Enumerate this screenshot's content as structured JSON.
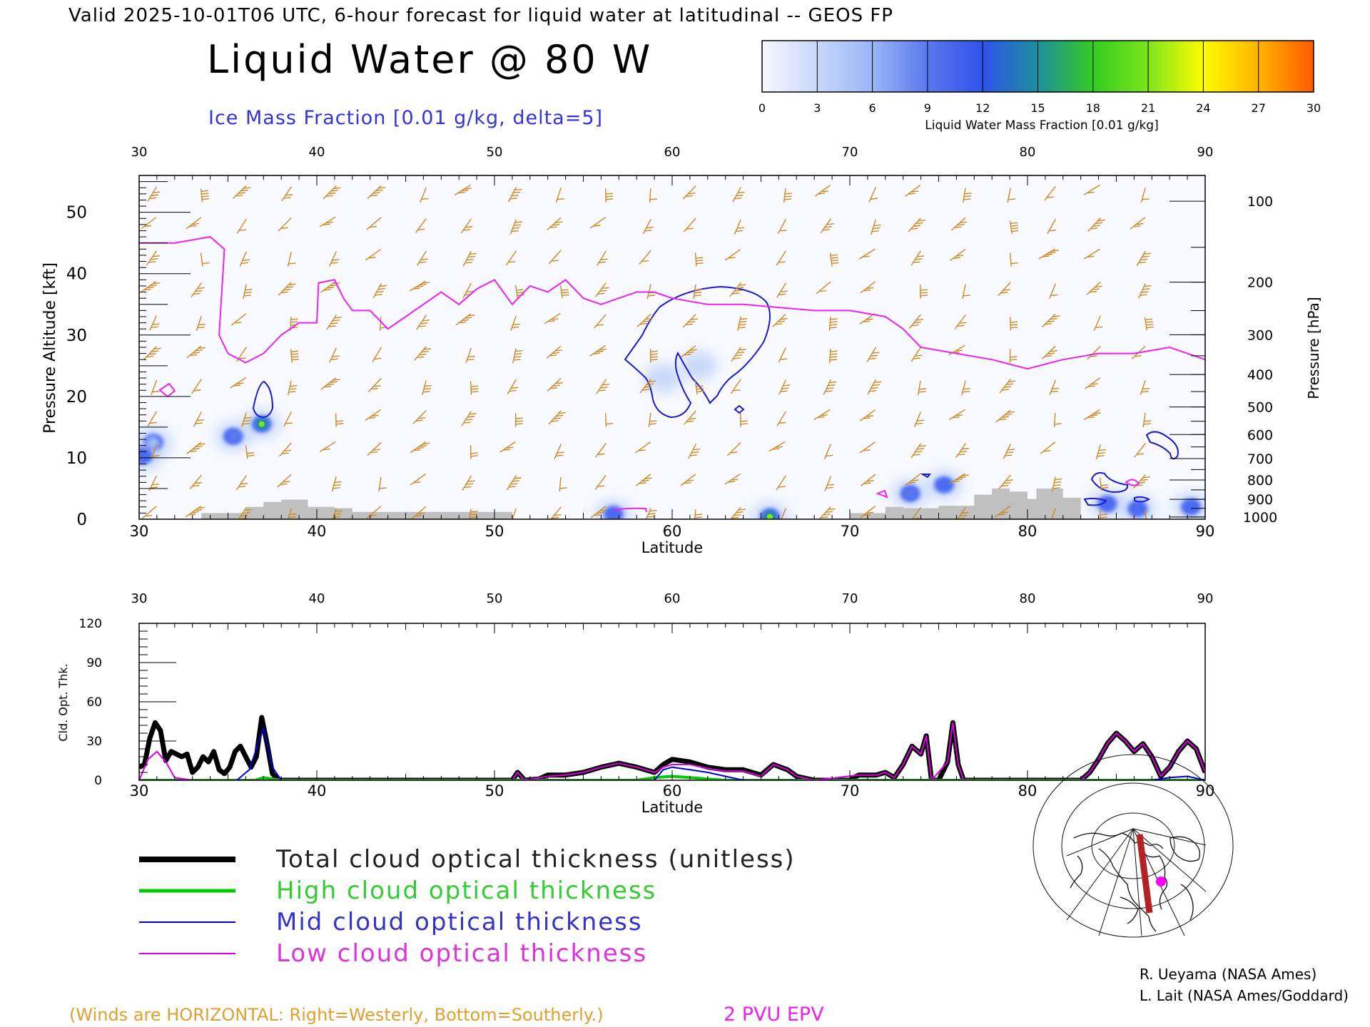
{
  "header": {
    "valid_line": "Valid 2025-10-01T06 UTC, 6-hour forecast for liquid water at latitudinal -- GEOS FP",
    "title": "Liquid Water @ 80 W",
    "ice_label": "Ice Mass Fraction [0.01 g/kg, delta=5]"
  },
  "colorbar": {
    "ticks": [
      "0",
      "3",
      "6",
      "9",
      "12",
      "15",
      "18",
      "21",
      "24",
      "27",
      "30"
    ],
    "colors": [
      "#f6f8ff",
      "#c8d8fb",
      "#99b5f6",
      "#5a78ef",
      "#2f53ea",
      "#1d8f9d",
      "#33cc22",
      "#7ee51c",
      "#fffc00",
      "#ffb300",
      "#ff5a00"
    ],
    "label": "Liquid Water Mass Fraction [0.01 g/kg]"
  },
  "chart_data": [
    {
      "type": "heatmap",
      "name_printed": "Liquid Water @ 80 W",
      "x_ticks": [
        "30",
        "40",
        "50",
        "60",
        "70",
        "80",
        "90"
      ],
      "xlim": [
        30,
        90
      ],
      "xlabel": "Latitude",
      "ylabel_left": "Pressure Altitude [kft]",
      "y_ticks_left": [
        "0",
        "10",
        "20",
        "30",
        "40",
        "50"
      ],
      "ylim_left": [
        0,
        56
      ],
      "ylabel_right": "Pressure [hPa]",
      "y_ticks_right": [
        "100",
        "200",
        "300",
        "400",
        "500",
        "600",
        "700",
        "800",
        "900",
        "1000"
      ],
      "tropopause_kft": [
        [
          30,
          45
        ],
        [
          32,
          45
        ],
        [
          34,
          46
        ],
        [
          34.8,
          44
        ],
        [
          34.5,
          30
        ],
        [
          35,
          27
        ],
        [
          36,
          25.5
        ],
        [
          37,
          27
        ],
        [
          38,
          30
        ],
        [
          39,
          32
        ],
        [
          40,
          32
        ],
        [
          40.1,
          38.5
        ],
        [
          41,
          39
        ],
        [
          41.5,
          36
        ],
        [
          42,
          34
        ],
        [
          43,
          34
        ],
        [
          44,
          31
        ],
        [
          45,
          33
        ],
        [
          46,
          35
        ],
        [
          47,
          37
        ],
        [
          48,
          35
        ],
        [
          49,
          37.5
        ],
        [
          50,
          39
        ],
        [
          51,
          35
        ],
        [
          52,
          38
        ],
        [
          53,
          37
        ],
        [
          54,
          39
        ],
        [
          55,
          36
        ],
        [
          56,
          35
        ],
        [
          57,
          36
        ],
        [
          58,
          37
        ],
        [
          59,
          37
        ],
        [
          60,
          36
        ],
        [
          62,
          35
        ],
        [
          64,
          35
        ],
        [
          66,
          34.5
        ],
        [
          68,
          34
        ],
        [
          70,
          34
        ],
        [
          72,
          33
        ],
        [
          73,
          31
        ],
        [
          74,
          28
        ],
        [
          76,
          27
        ],
        [
          78,
          26
        ],
        [
          80,
          24.5
        ],
        [
          82,
          26
        ],
        [
          84,
          27
        ],
        [
          86,
          27
        ],
        [
          88,
          28
        ],
        [
          90,
          26
        ]
      ],
      "cloud_blobs": [
        {
          "lat": 30.8,
          "kft": 12.5,
          "level": 10
        },
        {
          "lat": 30.2,
          "kft": 10.3,
          "level": 6
        },
        {
          "lat": 35.3,
          "kft": 13.5,
          "level": 12
        },
        {
          "lat": 36.9,
          "kft": 15.5,
          "level": 18
        },
        {
          "lat": 73.4,
          "kft": 4.2,
          "level": 12
        },
        {
          "lat": 75.3,
          "kft": 5.6,
          "level": 4
        },
        {
          "lat": 84.5,
          "kft": 2.5,
          "level": 5
        },
        {
          "lat": 86.2,
          "kft": 1.7,
          "level": 5
        },
        {
          "lat": 89.2,
          "kft": 2.0,
          "level": 6
        },
        {
          "lat": 65.5,
          "kft": 0.4,
          "level": 18
        },
        {
          "lat": 56.7,
          "kft": 0.8,
          "level": 5
        },
        {
          "lat": 59.5,
          "kft": 23.0,
          "level": 2
        },
        {
          "lat": 61.5,
          "kft": 25.0,
          "level": 2
        }
      ],
      "terrain_kft": [
        [
          30,
          0
        ],
        [
          33.5,
          0
        ],
        [
          33.5,
          1
        ],
        [
          36,
          1
        ],
        [
          36,
          2
        ],
        [
          37,
          2
        ],
        [
          37,
          2.8
        ],
        [
          38,
          2.8
        ],
        [
          38,
          3.2
        ],
        [
          39.5,
          3.2
        ],
        [
          39.5,
          2
        ],
        [
          41,
          2
        ],
        [
          41,
          1.8
        ],
        [
          42,
          1.8
        ],
        [
          42,
          1.2
        ],
        [
          51,
          1.2
        ],
        [
          51,
          0
        ],
        [
          70,
          0
        ],
        [
          70,
          1
        ],
        [
          72,
          1
        ],
        [
          72,
          2
        ],
        [
          73,
          2
        ],
        [
          73,
          1.8
        ],
        [
          75,
          1.8
        ],
        [
          75,
          2.2
        ],
        [
          77,
          2.2
        ],
        [
          77,
          4
        ],
        [
          78,
          4
        ],
        [
          78,
          5
        ],
        [
          79,
          5
        ],
        [
          79,
          4.5
        ],
        [
          80,
          4.5
        ],
        [
          80,
          3.3
        ],
        [
          80.5,
          3.3
        ],
        [
          80.5,
          5
        ],
        [
          82,
          5
        ],
        [
          82,
          3.5
        ],
        [
          83,
          3.5
        ],
        [
          83,
          0
        ],
        [
          90,
          0
        ]
      ]
    },
    {
      "type": "line",
      "xlim": [
        30,
        90
      ],
      "ylim": [
        0,
        120
      ],
      "x_ticks": [
        "30",
        "40",
        "50",
        "60",
        "70",
        "80",
        "90"
      ],
      "y_ticks": [
        "0",
        "30",
        "60",
        "90",
        "120"
      ],
      "xlabel": "Latitude",
      "ylabel": "Cld. Opt. Thk.",
      "series": [
        {
          "name": "Total cloud optical thickness (unitless)",
          "color": "#000000",
          "width": 7,
          "points": [
            [
              30,
              10
            ],
            [
              30.3,
              12
            ],
            [
              30.6,
              32
            ],
            [
              30.9,
              44
            ],
            [
              31.2,
              38
            ],
            [
              31.5,
              15
            ],
            [
              31.8,
              22
            ],
            [
              32.1,
              20
            ],
            [
              32.4,
              18
            ],
            [
              32.7,
              20
            ],
            [
              33,
              6
            ],
            [
              33.3,
              10
            ],
            [
              33.6,
              18
            ],
            [
              33.9,
              14
            ],
            [
              34.2,
              22
            ],
            [
              34.5,
              8
            ],
            [
              34.8,
              5
            ],
            [
              35.1,
              10
            ],
            [
              35.4,
              22
            ],
            [
              35.7,
              26
            ],
            [
              36,
              18
            ],
            [
              36.3,
              10
            ],
            [
              36.6,
              18
            ],
            [
              36.9,
              48
            ],
            [
              37.2,
              28
            ],
            [
              37.5,
              5
            ],
            [
              37.8,
              1
            ],
            [
              38,
              0
            ],
            [
              51,
              0
            ],
            [
              51.3,
              6
            ],
            [
              51.7,
              0
            ],
            [
              52.5,
              1
            ],
            [
              53,
              4
            ],
            [
              54,
              4
            ],
            [
              55,
              6
            ],
            [
              56,
              10
            ],
            [
              57,
              13
            ],
            [
              58,
              10
            ],
            [
              59,
              6
            ],
            [
              59.5,
              12
            ],
            [
              60,
              16
            ],
            [
              61,
              14
            ],
            [
              62,
              10
            ],
            [
              63,
              8
            ],
            [
              64,
              8
            ],
            [
              65,
              4
            ],
            [
              65.7,
              12
            ],
            [
              66.5,
              8
            ],
            [
              67,
              3
            ],
            [
              68,
              0
            ],
            [
              70,
              0
            ],
            [
              70.5,
              4
            ],
            [
              71.5,
              4
            ],
            [
              72,
              6
            ],
            [
              72.5,
              2
            ],
            [
              73,
              12
            ],
            [
              73.5,
              26
            ],
            [
              74,
              20
            ],
            [
              74.3,
              34
            ],
            [
              74.6,
              0
            ],
            [
              75,
              0
            ],
            [
              75.5,
              14
            ],
            [
              75.8,
              44
            ],
            [
              76.1,
              12
            ],
            [
              76.4,
              0
            ],
            [
              83,
              0
            ],
            [
              83.5,
              6
            ],
            [
              84,
              16
            ],
            [
              84.5,
              28
            ],
            [
              85,
              36
            ],
            [
              85.5,
              30
            ],
            [
              86,
              22
            ],
            [
              86.5,
              28
            ],
            [
              87,
              18
            ],
            [
              87.5,
              3
            ],
            [
              88,
              10
            ],
            [
              88.5,
              22
            ],
            [
              89,
              30
            ],
            [
              89.5,
              24
            ],
            [
              90,
              6
            ]
          ]
        },
        {
          "name": "High cloud optical thickness",
          "color": "#00cc00",
          "width": 4,
          "points": [
            [
              30,
              0
            ],
            [
              36.5,
              0
            ],
            [
              37,
              2
            ],
            [
              37.5,
              1
            ],
            [
              38,
              0
            ],
            [
              58,
              0
            ],
            [
              59,
              2
            ],
            [
              60,
              3
            ],
            [
              61,
              2
            ],
            [
              62,
              1
            ],
            [
              63,
              0
            ],
            [
              90,
              0
            ]
          ]
        },
        {
          "name": "Mid cloud optical thickness",
          "color": "#0000dd",
          "width": 2,
          "points": [
            [
              30,
              0
            ],
            [
              35.5,
              0
            ],
            [
              36.2,
              8
            ],
            [
              37,
              40
            ],
            [
              37.5,
              10
            ],
            [
              38,
              0
            ],
            [
              59,
              0
            ],
            [
              59.5,
              8
            ],
            [
              60,
              10
            ],
            [
              61,
              8
            ],
            [
              62,
              6
            ],
            [
              63,
              3
            ],
            [
              64,
              0
            ],
            [
              87,
              0
            ],
            [
              88,
              2
            ],
            [
              89,
              3
            ],
            [
              90,
              0
            ]
          ]
        },
        {
          "name": "Low cloud optical thickness",
          "color": "#dd00dd",
          "width": 2,
          "points": [
            [
              30,
              0
            ],
            [
              30.5,
              16
            ],
            [
              31,
              22
            ],
            [
              31.5,
              14
            ],
            [
              32,
              2
            ],
            [
              33,
              0
            ],
            [
              51,
              0
            ],
            [
              51.3,
              6
            ],
            [
              51.7,
              0
            ],
            [
              53,
              3
            ],
            [
              54,
              4
            ],
            [
              55,
              6
            ],
            [
              56,
              10
            ],
            [
              57,
              13
            ],
            [
              58,
              10
            ],
            [
              59,
              6
            ],
            [
              59.5,
              10
            ],
            [
              60,
              12
            ],
            [
              61,
              12
            ],
            [
              62,
              9
            ],
            [
              63,
              7
            ],
            [
              64,
              7
            ],
            [
              65,
              3
            ],
            [
              65.7,
              12
            ],
            [
              66.5,
              8
            ],
            [
              67,
              3
            ],
            [
              68,
              0
            ],
            [
              70.5,
              4
            ],
            [
              71.5,
              4
            ],
            [
              72,
              6
            ],
            [
              72.5,
              2
            ],
            [
              73,
              12
            ],
            [
              73.5,
              26
            ],
            [
              74,
              20
            ],
            [
              74.3,
              34
            ],
            [
              74.6,
              0
            ],
            [
              75.5,
              14
            ],
            [
              75.8,
              44
            ],
            [
              76.1,
              12
            ],
            [
              76.4,
              0
            ],
            [
              83,
              0
            ],
            [
              83.5,
              6
            ],
            [
              84,
              16
            ],
            [
              84.5,
              28
            ],
            [
              85,
              36
            ],
            [
              85.5,
              30
            ],
            [
              86,
              22
            ],
            [
              86.5,
              28
            ],
            [
              87,
              18
            ],
            [
              87.5,
              3
            ],
            [
              88,
              10
            ],
            [
              88.5,
              22
            ],
            [
              89,
              30
            ],
            [
              89.5,
              24
            ],
            [
              90,
              6
            ]
          ]
        }
      ]
    }
  ],
  "legend": {
    "items": [
      {
        "label": "Total cloud optical thickness (unitless)",
        "color": "#000000",
        "text_color": "#222222"
      },
      {
        "label": "High cloud optical thickness",
        "color": "#00cc00",
        "text_color": "#33cc33"
      },
      {
        "label": "Mid cloud optical thickness",
        "color": "#0000cc",
        "text_color": "#3333cc"
      },
      {
        "label": "Low cloud optical thickness",
        "color": "#dd00dd",
        "text_color": "#dd33dd"
      }
    ]
  },
  "footer": {
    "winds_note": "(Winds are HORIZONTAL: Right=Westerly, Bottom=Southerly.)",
    "epv_label": "2 PVU EPV",
    "credit1": "R. Ueyama (NASA Ames)",
    "credit2": "L. Lait (NASA Ames/Goddard)"
  },
  "colors": {
    "wind_barb": "#cc8a22",
    "ice_contour": "#1a1acc",
    "tropopause": "#ee22ee",
    "terrain": "#c0c0c0",
    "winds_note": "#e0a030",
    "epv": "#ee22ee",
    "ice_label": "#3333dd",
    "flight_track": "#b22222",
    "location_marker": "#ff00ff"
  }
}
